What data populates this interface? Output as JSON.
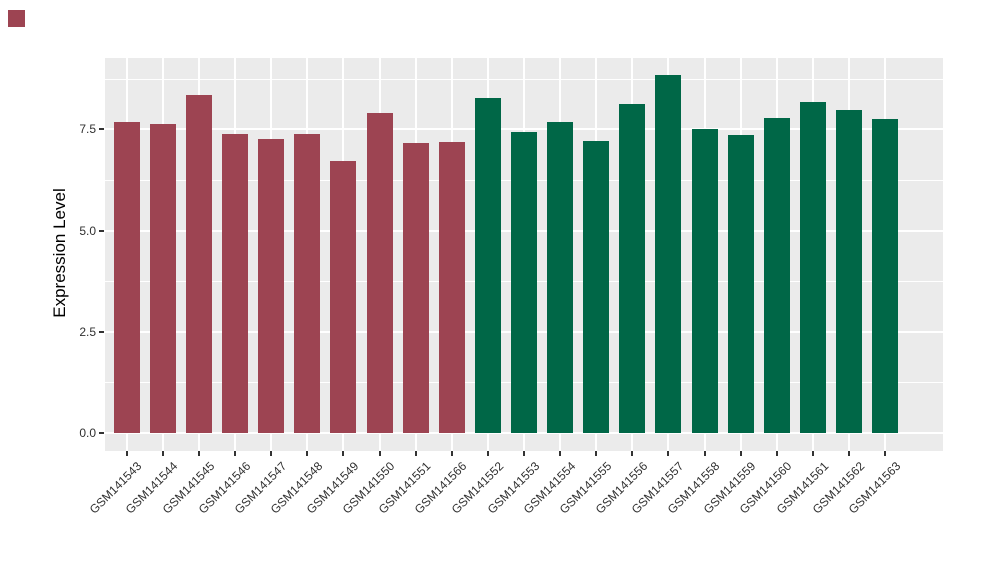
{
  "chart_data": {
    "type": "bar",
    "title": "",
    "xlabel": "",
    "ylabel": "Expression Level",
    "categories": [
      "GSM141543",
      "GSM141544",
      "GSM141545",
      "GSM141546",
      "GSM141547",
      "GSM141548",
      "GSM141549",
      "GSM141550",
      "GSM141551",
      "GSM141566",
      "GSM141552",
      "GSM141553",
      "GSM141554",
      "GSM141555",
      "GSM141556",
      "GSM141557",
      "GSM141558",
      "GSM141559",
      "GSM141560",
      "GSM141561",
      "GSM141562",
      "GSM141563"
    ],
    "values": [
      7.68,
      7.64,
      8.35,
      7.38,
      7.27,
      7.38,
      6.71,
      7.89,
      7.15,
      7.18,
      8.27,
      7.44,
      7.68,
      7.21,
      8.13,
      8.85,
      7.5,
      7.36,
      7.78,
      8.17,
      7.98,
      7.75
    ],
    "bar_colors": [
      "#9D4452",
      "#9D4452",
      "#9D4452",
      "#9D4452",
      "#9D4452",
      "#9D4452",
      "#9D4452",
      "#9D4452",
      "#9D4452",
      "#9D4452",
      "#006747",
      "#006747",
      "#006747",
      "#006747",
      "#006747",
      "#006747",
      "#006747",
      "#006747",
      "#006747",
      "#006747",
      "#006747",
      "#006747"
    ],
    "yticks": {
      "values": [
        0,
        2.5,
        5,
        7.5
      ],
      "labels": [
        "0.0",
        "2.5",
        "5.0",
        "7.5"
      ]
    },
    "minor_gridline_values": [
      1.25,
      3.75,
      6.25,
      8.75
    ],
    "ylim": [
      0,
      9.3
    ],
    "grid": true,
    "legend": "none",
    "colors": {
      "panel_background": "#EBEBEB",
      "gridline": "#FFFFFF",
      "group1_bar": "#9D4452",
      "group2_bar": "#006747",
      "axis_text": "#303030",
      "tick_mark": "#333333",
      "axis_title": "#000000"
    }
  },
  "decorations": {
    "top_left_square_color": "#9D4452"
  }
}
